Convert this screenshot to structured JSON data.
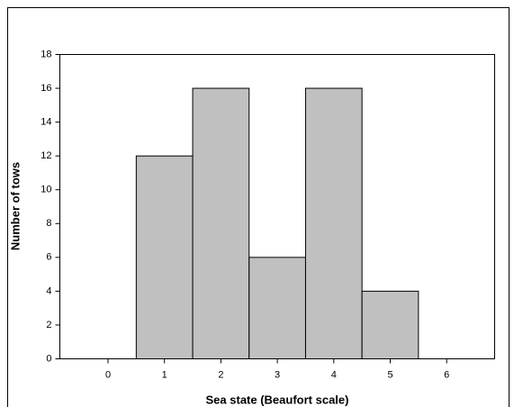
{
  "chart_data": {
    "type": "bar",
    "x_label": "Sea state (Beaufort scale)",
    "y_label": "Number of tows",
    "categories": [
      "0",
      "1",
      "2",
      "3",
      "4",
      "5",
      "6"
    ],
    "values": [
      0,
      12,
      16,
      6,
      16,
      4,
      0
    ],
    "color": "#c0c0c0",
    "edge_color": "#000000",
    "ylim": [
      0,
      18
    ],
    "yticks": [
      0,
      2,
      4,
      6,
      8,
      10,
      12,
      14,
      16,
      18
    ],
    "grid": false
  }
}
